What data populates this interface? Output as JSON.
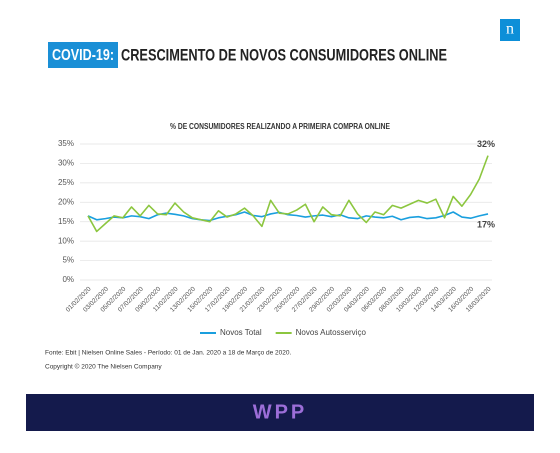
{
  "header": {
    "tag": "COVID-19:",
    "title": "CRESCIMENTO DE NOVOS CONSUMIDORES ONLINE"
  },
  "logo": "n",
  "chart_data": {
    "type": "line",
    "title": "% DE CONSUMIDORES REALIZANDO A PRIMEIRA COMPRA ONLINE",
    "categories": [
      "01/02/2020",
      null,
      "03/02/2020",
      null,
      "05/02/2020",
      null,
      "07/02/2020",
      null,
      "09/02/2020",
      null,
      "11/02/2020",
      null,
      "13/02/2020",
      null,
      "15/02/2020",
      null,
      "17/02/2020",
      null,
      "19/02/2020",
      null,
      "21/02/2020",
      null,
      "23/02/2020",
      null,
      "25/02/2020",
      null,
      "27/02/2020",
      null,
      "29/02/2020",
      null,
      "02/03/2020",
      null,
      "04/03/2020",
      null,
      "06/03/2020",
      null,
      "08/03/2020",
      null,
      "10/03/2020",
      null,
      "12/03/2020",
      null,
      "14/03/2020",
      null,
      "16/03/2020",
      null,
      "18/03/2020"
    ],
    "series": [
      {
        "name": "Novos Total",
        "color": "#1a9fde",
        "values": [
          16.5,
          15.5,
          15.8,
          16.2,
          16.0,
          16.5,
          16.3,
          15.8,
          16.8,
          17.2,
          16.9,
          16.5,
          15.8,
          15.5,
          15.3,
          16.0,
          16.4,
          16.8,
          17.5,
          16.6,
          16.3,
          17.0,
          17.4,
          16.8,
          16.6,
          16.2,
          16.5,
          16.7,
          16.3,
          16.8,
          16.0,
          15.8,
          16.5,
          16.2,
          16.0,
          16.4,
          15.5,
          16.1,
          16.3,
          15.8,
          16.0,
          16.6,
          17.5,
          16.2,
          15.9,
          16.5,
          17.0
        ],
        "value_labels": [
          null,
          null,
          null,
          null,
          null,
          null,
          null,
          null,
          null,
          null,
          null,
          null,
          null,
          null,
          null,
          null,
          null,
          null,
          null,
          null,
          null,
          null,
          null,
          null,
          null,
          null,
          null,
          null,
          null,
          null,
          null,
          null,
          null,
          null,
          null,
          null,
          null,
          null,
          null,
          null,
          null,
          null,
          null,
          null,
          null,
          null,
          "17%"
        ]
      },
      {
        "name": "Novos Autosserviço",
        "color": "#8cc63f",
        "values": [
          16.5,
          12.5,
          14.5,
          16.5,
          16.0,
          18.8,
          16.5,
          19.2,
          17.0,
          16.8,
          19.8,
          17.5,
          16.0,
          15.5,
          15.0,
          17.8,
          16.2,
          17.0,
          18.5,
          16.5,
          13.8,
          20.5,
          17.2,
          17.0,
          18.0,
          19.5,
          15.0,
          18.8,
          16.8,
          16.5,
          20.5,
          17.0,
          14.8,
          17.5,
          16.8,
          19.2,
          18.5,
          19.5,
          20.5,
          19.8,
          20.8,
          16.0,
          21.5,
          19.0,
          22.0,
          26.0,
          32.0
        ],
        "value_labels": [
          null,
          null,
          null,
          null,
          null,
          null,
          null,
          null,
          null,
          null,
          null,
          null,
          null,
          null,
          null,
          null,
          null,
          null,
          null,
          null,
          null,
          null,
          null,
          null,
          null,
          null,
          null,
          null,
          null,
          null,
          null,
          null,
          null,
          null,
          null,
          null,
          null,
          null,
          null,
          null,
          null,
          null,
          null,
          null,
          null,
          null,
          "32%"
        ]
      }
    ],
    "ylim": [
      0,
      35
    ],
    "yticks": [
      {
        "value": 0,
        "label": "0%"
      },
      {
        "value": 5,
        "label": "5%"
      },
      {
        "value": 10,
        "label": "10%"
      },
      {
        "value": 15,
        "label": "15%"
      },
      {
        "value": 20,
        "label": "20%"
      },
      {
        "value": 25,
        "label": "25%"
      },
      {
        "value": 30,
        "label": "30%"
      },
      {
        "value": 35,
        "label": "35%"
      }
    ],
    "grid": true,
    "legend": "bottom"
  },
  "footer": {
    "source": "Fonte: Ebit | Nielsen Online Sales - Período: 01 de Jan. 2020 a 18  de Março de 2020.",
    "copyright": "Copyright © 2020 The Nielsen Company"
  },
  "banner": "WPP"
}
